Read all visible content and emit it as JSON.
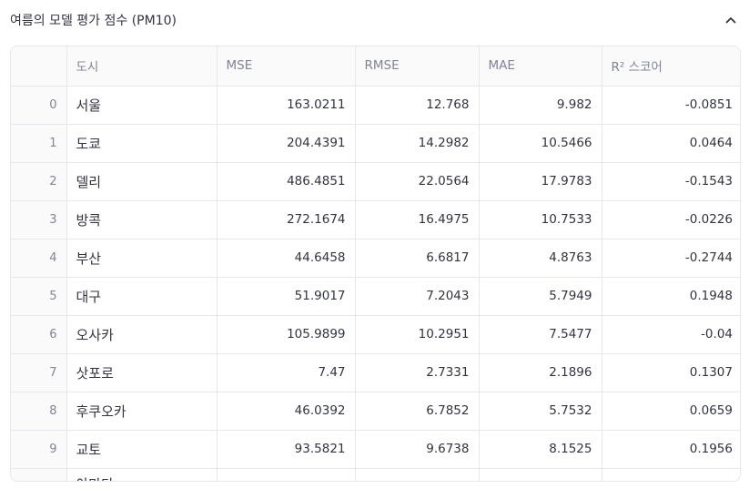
{
  "expander": {
    "title": "여름의 모델 평가 점수 (PM10)",
    "icon": "chevron-up-icon"
  },
  "table": {
    "columns": [
      "",
      "도시",
      "MSE",
      "RMSE",
      "MAE",
      "R² 스코어"
    ],
    "rows": [
      {
        "index": "0",
        "city": "서울",
        "mse": "163.0211",
        "rmse": "12.768",
        "mae": "9.982",
        "r2": "-0.0851"
      },
      {
        "index": "1",
        "city": "도쿄",
        "mse": "204.4391",
        "rmse": "14.2982",
        "mae": "10.5466",
        "r2": "0.0464"
      },
      {
        "index": "2",
        "city": "델리",
        "mse": "486.4851",
        "rmse": "22.0564",
        "mae": "17.9783",
        "r2": "-0.1543"
      },
      {
        "index": "3",
        "city": "방콕",
        "mse": "272.1674",
        "rmse": "16.4975",
        "mae": "10.7533",
        "r2": "-0.0226"
      },
      {
        "index": "4",
        "city": "부산",
        "mse": "44.6458",
        "rmse": "6.6817",
        "mae": "4.8763",
        "r2": "-0.2744"
      },
      {
        "index": "5",
        "city": "대구",
        "mse": "51.9017",
        "rmse": "7.2043",
        "mae": "5.7949",
        "r2": "0.1948"
      },
      {
        "index": "6",
        "city": "오사카",
        "mse": "105.9899",
        "rmse": "10.2951",
        "mae": "7.5477",
        "r2": "-0.04"
      },
      {
        "index": "7",
        "city": "삿포로",
        "mse": "7.47",
        "rmse": "2.7331",
        "mae": "2.1896",
        "r2": "0.1307"
      },
      {
        "index": "8",
        "city": "후쿠오카",
        "mse": "46.0392",
        "rmse": "6.7852",
        "mae": "5.7532",
        "r2": "0.0659"
      },
      {
        "index": "9",
        "city": "교토",
        "mse": "93.5821",
        "rmse": "9.6738",
        "mae": "8.1525",
        "r2": "0.1956"
      },
      {
        "index": "",
        "city": "아마다",
        "mse": "",
        "rmse": "",
        "mae": "",
        "r2": ""
      }
    ]
  },
  "colors": {
    "border": "#e6e8ee",
    "header_bg": "#fafafa",
    "header_text": "#808495",
    "text": "#31333f"
  }
}
